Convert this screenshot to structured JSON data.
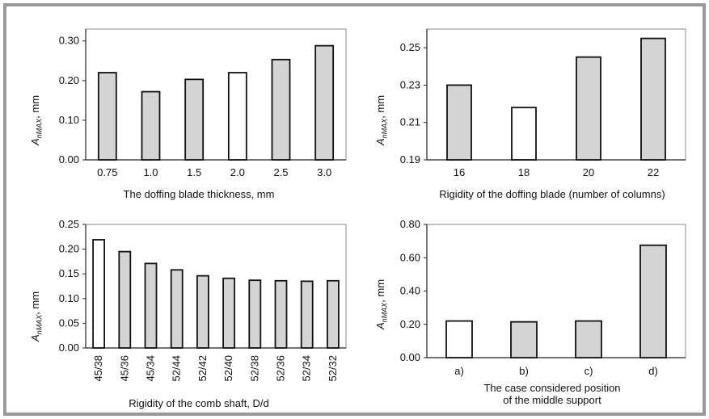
{
  "colors": {
    "bar_fill": "#d4d4d4",
    "highlight_fill": "#ffffff",
    "bar_stroke": "#111111",
    "frame": "#9a9a9a"
  },
  "chart_data": [
    {
      "type": "bar",
      "categories": [
        "0.75",
        "1.0",
        "1.5",
        "2.0",
        "2.5",
        "3.0"
      ],
      "values": [
        0.22,
        0.172,
        0.203,
        0.22,
        0.253,
        0.288
      ],
      "highlight": [
        "2.0"
      ],
      "xlabel": "The doffing blade thickness, mm",
      "ylabel_main": "A",
      "ylabel_sub": "nMAX",
      "ylabel_unit": ", mm",
      "yticks": [
        "0.00",
        "0.10",
        "0.20",
        "0.30"
      ],
      "ylim": [
        0,
        0.33
      ],
      "grid": false
    },
    {
      "type": "bar",
      "categories": [
        "16",
        "18",
        "20",
        "22"
      ],
      "values": [
        0.23,
        0.218,
        0.245,
        0.255
      ],
      "highlight": [
        "18"
      ],
      "xlabel": "Rigidity of the doffing blade (number of columns)",
      "ylabel_main": "A",
      "ylabel_sub": "nMAX",
      "ylabel_unit": ", mm",
      "yticks": [
        "0.19",
        "0.21",
        "0.23",
        "0.25"
      ],
      "ylim": [
        0.19,
        0.26
      ],
      "grid": false
    },
    {
      "type": "bar",
      "categories": [
        "45/38",
        "45/36",
        "45/34",
        "52/44",
        "52/42",
        "52/40",
        "52/38",
        "52/36",
        "52/34",
        "52/32"
      ],
      "values": [
        0.219,
        0.195,
        0.171,
        0.158,
        0.146,
        0.141,
        0.137,
        0.136,
        0.135,
        0.136
      ],
      "highlight": [
        "45/38"
      ],
      "xlabel": "Rigidity of the comb shaft, D/d",
      "ylabel_main": "A",
      "ylabel_sub": "nMAX",
      "ylabel_unit": ", mm",
      "yticks": [
        "0.00",
        "0.05",
        "0.10",
        "0.15",
        "0.20",
        "0.25"
      ],
      "ylim": [
        0,
        0.25
      ],
      "grid": false
    },
    {
      "type": "bar",
      "categories": [
        "a)",
        "b)",
        "c)",
        "d)"
      ],
      "values": [
        0.22,
        0.215,
        0.22,
        0.675
      ],
      "highlight": [
        "a)"
      ],
      "xlabel": "The case considered position",
      "xlabel2": "of the middle support",
      "ylabel_main": "A",
      "ylabel_sub": "nMAX",
      "ylabel_unit": ", mm",
      "yticks": [
        "0.00",
        "0.20",
        "0.40",
        "0.60",
        "0.80"
      ],
      "ylim": [
        0,
        0.8
      ],
      "grid": false
    }
  ]
}
